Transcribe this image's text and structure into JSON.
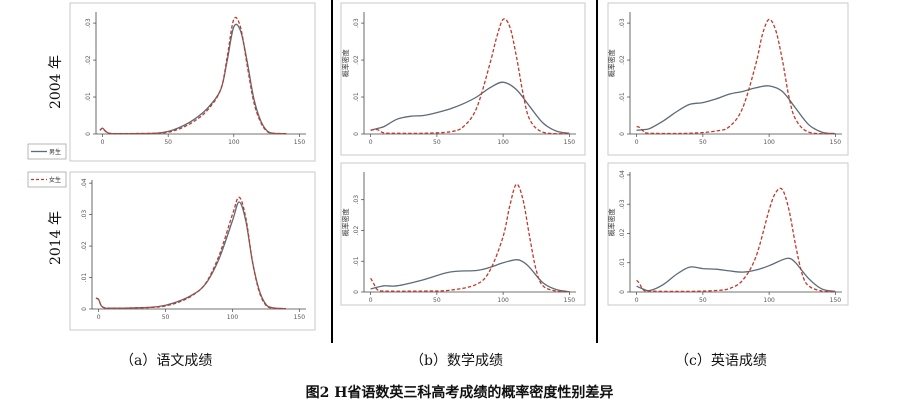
{
  "figure_title": "图2 H省语数英三科高考成绩的概率密度性别差异",
  "row_labels": [
    "2004 年",
    "2014 年"
  ],
  "legend": {
    "male": "男生",
    "female": "女生"
  },
  "captions": [
    "（a）语文成绩",
    "（b）数学成绩",
    "（c）英语成绩"
  ],
  "colors": {
    "male": "#5b6b78",
    "female": "#c0392b",
    "frame": "#c8c8c8"
  },
  "chart_data": [
    {
      "type": "line",
      "subject": "语文",
      "year": "2004",
      "xlabel": "",
      "ylabel": "",
      "xlim": [
        -5,
        155
      ],
      "ylim": [
        0,
        0.033
      ],
      "xticks": [
        "0",
        "50",
        "100",
        "150"
      ],
      "yticks": [
        "0",
        ".01",
        ".02",
        ".03"
      ],
      "series": [
        {
          "name": "男生",
          "x": [
            -2,
            0,
            2,
            5,
            10,
            20,
            40,
            50,
            60,
            70,
            80,
            90,
            95,
            100,
            105,
            110,
            115,
            120,
            125,
            130,
            140
          ],
          "y": [
            0.001,
            0.0016,
            0.0008,
            0.0002,
            0.0001,
            0.0001,
            0.0002,
            0.0007,
            0.002,
            0.004,
            0.007,
            0.012,
            0.02,
            0.029,
            0.028,
            0.02,
            0.01,
            0.004,
            0.001,
            0.0002,
            0.0001
          ]
        },
        {
          "name": "女生",
          "x": [
            -2,
            0,
            2,
            5,
            10,
            20,
            40,
            50,
            60,
            70,
            80,
            90,
            95,
            100,
            105,
            110,
            115,
            120,
            125,
            130,
            140
          ],
          "y": [
            0.001,
            0.0016,
            0.0008,
            0.0002,
            0.0001,
            0.0001,
            0.0002,
            0.0005,
            0.0016,
            0.0035,
            0.0065,
            0.012,
            0.021,
            0.031,
            0.029,
            0.019,
            0.009,
            0.0035,
            0.0008,
            0.0002,
            0.0001
          ]
        }
      ]
    },
    {
      "type": "line",
      "subject": "语文",
      "year": "2014",
      "xlabel": "",
      "ylabel": "",
      "xlim": [
        -5,
        155
      ],
      "ylim": [
        0,
        0.041
      ],
      "xticks": [
        "0",
        "50",
        "100",
        "150"
      ],
      "yticks": [
        "0",
        ".01",
        ".02",
        ".03",
        ".04"
      ],
      "series": [
        {
          "name": "男生",
          "x": [
            -2,
            0,
            2,
            5,
            10,
            20,
            40,
            50,
            60,
            70,
            80,
            90,
            100,
            105,
            110,
            115,
            120,
            125,
            130,
            140
          ],
          "y": [
            0.0035,
            0.003,
            0.001,
            0.0003,
            0.0003,
            0.0003,
            0.0006,
            0.0012,
            0.0025,
            0.0045,
            0.008,
            0.016,
            0.028,
            0.034,
            0.028,
            0.015,
            0.006,
            0.0015,
            0.0004,
            0.0001
          ]
        },
        {
          "name": "女生",
          "x": [
            -2,
            0,
            2,
            5,
            10,
            20,
            40,
            50,
            60,
            70,
            80,
            90,
            100,
            105,
            110,
            115,
            120,
            125,
            130,
            140
          ],
          "y": [
            0.0035,
            0.003,
            0.001,
            0.0003,
            0.0003,
            0.0003,
            0.0005,
            0.001,
            0.0022,
            0.0043,
            0.0082,
            0.017,
            0.03,
            0.0355,
            0.029,
            0.015,
            0.0055,
            0.0012,
            0.0003,
            0.0001
          ]
        }
      ]
    },
    {
      "type": "line",
      "subject": "数学",
      "year": "2004",
      "xlabel": "",
      "ylabel": "概率密度",
      "xlim": [
        -5,
        155
      ],
      "ylim": [
        0,
        0.033
      ],
      "xticks": [
        "0",
        "50",
        "100",
        "150"
      ],
      "yticks": [
        "0",
        ".01",
        ".02",
        ".03"
      ],
      "series": [
        {
          "name": "男生",
          "x": [
            0,
            5,
            10,
            20,
            30,
            40,
            50,
            60,
            70,
            80,
            90,
            100,
            110,
            120,
            130,
            140,
            150
          ],
          "y": [
            0.001,
            0.0015,
            0.002,
            0.004,
            0.0048,
            0.005,
            0.0058,
            0.0068,
            0.0082,
            0.01,
            0.0125,
            0.014,
            0.012,
            0.0075,
            0.003,
            0.0008,
            0.0002
          ]
        },
        {
          "name": "女生",
          "x": [
            0,
            5,
            10,
            20,
            40,
            60,
            70,
            80,
            90,
            95,
            100,
            105,
            110,
            115,
            120,
            130,
            150
          ],
          "y": [
            0.001,
            0.0012,
            0.0003,
            0.0002,
            0.0002,
            0.0006,
            0.002,
            0.007,
            0.019,
            0.026,
            0.031,
            0.029,
            0.021,
            0.011,
            0.004,
            0.0005,
            0.0001
          ]
        }
      ]
    },
    {
      "type": "line",
      "subject": "数学",
      "year": "2014",
      "xlabel": "",
      "ylabel": "概率密度",
      "xlim": [
        -5,
        155
      ],
      "ylim": [
        0,
        0.039
      ],
      "xticks": [
        "0",
        "50",
        "100",
        "150"
      ],
      "yticks": [
        "0",
        ".01",
        ".02",
        ".03"
      ],
      "series": [
        {
          "name": "男生",
          "x": [
            0,
            10,
            20,
            40,
            60,
            80,
            90,
            100,
            110,
            115,
            120,
            130,
            140,
            150
          ],
          "y": [
            0.001,
            0.002,
            0.002,
            0.004,
            0.0065,
            0.007,
            0.008,
            0.0095,
            0.0105,
            0.0098,
            0.008,
            0.003,
            0.0008,
            0.0001
          ]
        },
        {
          "name": "女生",
          "x": [
            0,
            2,
            5,
            10,
            40,
            60,
            80,
            90,
            100,
            105,
            110,
            115,
            120,
            125,
            130,
            140,
            150
          ],
          "y": [
            0.0045,
            0.003,
            0.0008,
            0.0003,
            0.0003,
            0.0006,
            0.0025,
            0.007,
            0.018,
            0.028,
            0.035,
            0.03,
            0.018,
            0.007,
            0.002,
            0.0003,
            0.0001
          ]
        }
      ]
    },
    {
      "type": "line",
      "subject": "英语",
      "year": "2004",
      "xlabel": "",
      "ylabel": "概率密度",
      "xlim": [
        -5,
        155
      ],
      "ylim": [
        0,
        0.033
      ],
      "xticks": [
        "0",
        "50",
        "100",
        "150"
      ],
      "yticks": [
        "0",
        ".01",
        ".02",
        ".03"
      ],
      "series": [
        {
          "name": "男生",
          "x": [
            0,
            5,
            10,
            20,
            30,
            40,
            50,
            60,
            70,
            80,
            90,
            100,
            110,
            120,
            130,
            140,
            150
          ],
          "y": [
            0.001,
            0.0012,
            0.0015,
            0.0035,
            0.006,
            0.008,
            0.0085,
            0.0095,
            0.0108,
            0.0115,
            0.0125,
            0.013,
            0.0115,
            0.007,
            0.0025,
            0.0005,
            0.0001
          ]
        },
        {
          "name": "女生",
          "x": [
            0,
            2,
            5,
            10,
            40,
            60,
            70,
            80,
            90,
            95,
            100,
            105,
            110,
            115,
            120,
            130,
            150
          ],
          "y": [
            0.002,
            0.0018,
            0.0008,
            0.0002,
            0.0002,
            0.0008,
            0.002,
            0.007,
            0.019,
            0.027,
            0.031,
            0.028,
            0.02,
            0.01,
            0.004,
            0.0005,
            0.0001
          ]
        }
      ]
    },
    {
      "type": "line",
      "subject": "英语",
      "year": "2014",
      "xlabel": "",
      "ylabel": "概率密度",
      "xlim": [
        -5,
        155
      ],
      "ylim": [
        0,
        0.041
      ],
      "xticks": [
        "0",
        "50",
        "100",
        "150"
      ],
      "yticks": [
        "0",
        ".01",
        ".02",
        ".03",
        ".04"
      ],
      "series": [
        {
          "name": "男生",
          "x": [
            0,
            5,
            10,
            20,
            30,
            40,
            50,
            60,
            70,
            80,
            90,
            100,
            110,
            115,
            120,
            130,
            140,
            150
          ],
          "y": [
            0.002,
            0.001,
            0.0005,
            0.0025,
            0.006,
            0.0085,
            0.008,
            0.0078,
            0.0072,
            0.0068,
            0.0075,
            0.009,
            0.011,
            0.0115,
            0.01,
            0.0045,
            0.001,
            0.0002
          ]
        },
        {
          "name": "女生",
          "x": [
            0,
            2,
            5,
            10,
            40,
            60,
            70,
            80,
            90,
            100,
            105,
            110,
            115,
            120,
            125,
            130,
            140,
            150
          ],
          "y": [
            0.004,
            0.003,
            0.0008,
            0.0003,
            0.0002,
            0.0005,
            0.0012,
            0.004,
            0.012,
            0.028,
            0.034,
            0.035,
            0.028,
            0.016,
            0.006,
            0.002,
            0.0003,
            0.0001
          ]
        }
      ]
    }
  ]
}
